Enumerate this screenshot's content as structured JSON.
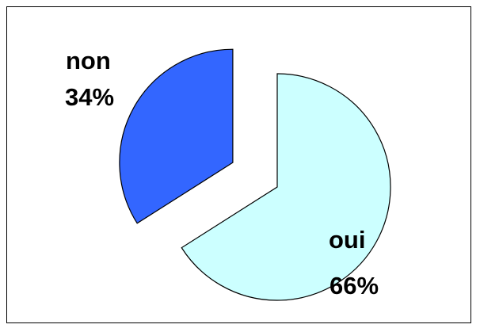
{
  "chart_data": {
    "type": "pie",
    "title": "",
    "exploded": true,
    "slices": [
      {
        "label": "oui",
        "value": 66,
        "value_label": "66%",
        "color": "#CCFFFF"
      },
      {
        "label": "non",
        "value": 34,
        "value_label": "34%",
        "color": "#3366FF"
      }
    ]
  }
}
